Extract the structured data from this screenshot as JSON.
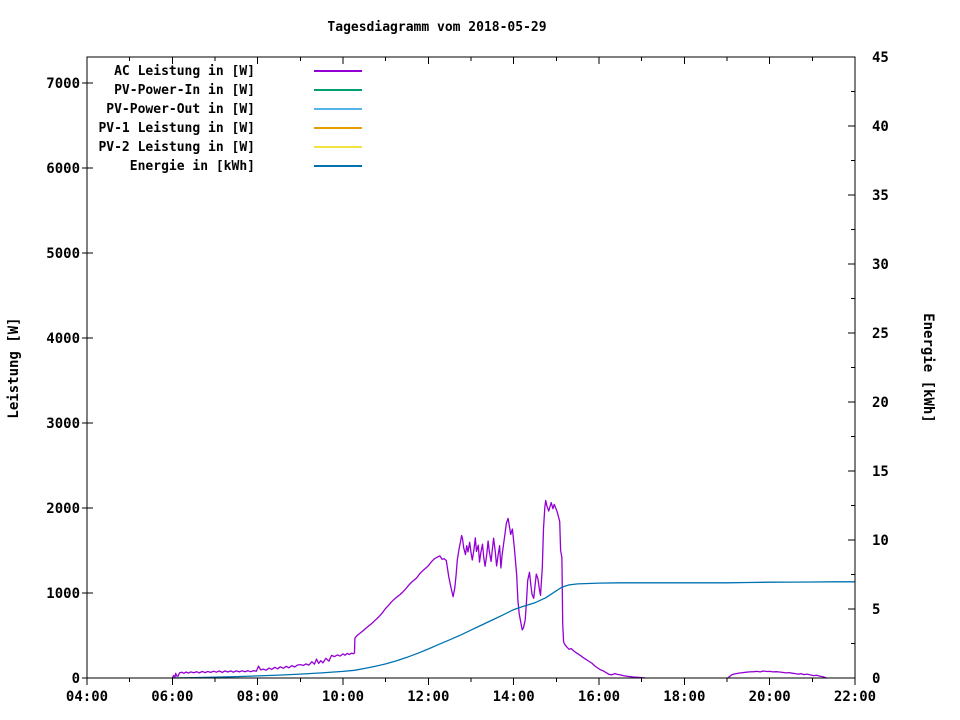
{
  "chart_data": {
    "type": "line",
    "title": "Tagesdiagramm vom 2018-05-29",
    "xlabel": "",
    "ylabel": "Leistung [W]",
    "y2label": "Energie [kWh]",
    "x_unit": "hours",
    "x_range": [
      4,
      22
    ],
    "y_range": [
      0,
      7000
    ],
    "y2_range": [
      0,
      45
    ],
    "grid": false,
    "legend_position": "top-left-inside",
    "x_tick_labels": [
      "04:00",
      "06:00",
      "08:00",
      "10:00",
      "12:00",
      "14:00",
      "16:00",
      "18:00",
      "20:00",
      "22:00"
    ],
    "y_tick_labels": [
      "0",
      "1000",
      "2000",
      "3000",
      "4000",
      "5000",
      "6000",
      "7000"
    ],
    "y2_tick_labels": [
      "0",
      "5",
      "10",
      "15",
      "20",
      "25",
      "30",
      "35",
      "40",
      "45"
    ],
    "series": [
      {
        "name": "AC Leistung in [W]",
        "color": "#9400d3",
        "axis": "y1",
        "points": [
          [
            6.0,
            0
          ],
          [
            6.03,
            30
          ],
          [
            6.06,
            10
          ],
          [
            6.08,
            55
          ],
          [
            6.1,
            25
          ],
          [
            6.13,
            20
          ],
          [
            6.17,
            60
          ],
          [
            6.22,
            68
          ],
          [
            6.27,
            55
          ],
          [
            6.32,
            70
          ],
          [
            6.38,
            58
          ],
          [
            6.43,
            72
          ],
          [
            6.5,
            62
          ],
          [
            6.57,
            74
          ],
          [
            6.63,
            60
          ],
          [
            6.7,
            76
          ],
          [
            6.77,
            64
          ],
          [
            6.83,
            76
          ],
          [
            6.9,
            66
          ],
          [
            6.97,
            80
          ],
          [
            7.03,
            68
          ],
          [
            7.1,
            82
          ],
          [
            7.17,
            66
          ],
          [
            7.23,
            84
          ],
          [
            7.3,
            70
          ],
          [
            7.37,
            84
          ],
          [
            7.43,
            68
          ],
          [
            7.5,
            84
          ],
          [
            7.57,
            72
          ],
          [
            7.63,
            85
          ],
          [
            7.7,
            74
          ],
          [
            7.77,
            86
          ],
          [
            7.83,
            74
          ],
          [
            7.9,
            86
          ],
          [
            7.97,
            80
          ],
          [
            8.02,
            140
          ],
          [
            8.07,
            95
          ],
          [
            8.13,
            105
          ],
          [
            8.2,
            92
          ],
          [
            8.27,
            118
          ],
          [
            8.33,
            100
          ],
          [
            8.4,
            126
          ],
          [
            8.47,
            108
          ],
          [
            8.53,
            132
          ],
          [
            8.6,
            114
          ],
          [
            8.67,
            138
          ],
          [
            8.73,
            120
          ],
          [
            8.8,
            146
          ],
          [
            8.87,
            130
          ],
          [
            8.93,
            152
          ],
          [
            9.0,
            158
          ],
          [
            9.07,
            148
          ],
          [
            9.13,
            166
          ],
          [
            9.2,
            152
          ],
          [
            9.27,
            192
          ],
          [
            9.33,
            162
          ],
          [
            9.38,
            222
          ],
          [
            9.43,
            172
          ],
          [
            9.48,
            204
          ],
          [
            9.53,
            178
          ],
          [
            9.6,
            232
          ],
          [
            9.67,
            198
          ],
          [
            9.73,
            266
          ],
          [
            9.8,
            252
          ],
          [
            9.87,
            272
          ],
          [
            9.93,
            258
          ],
          [
            10.0,
            284
          ],
          [
            10.05,
            268
          ],
          [
            10.1,
            290
          ],
          [
            10.15,
            276
          ],
          [
            10.2,
            292
          ],
          [
            10.25,
            286
          ],
          [
            10.27,
            298
          ],
          [
            10.28,
            468
          ],
          [
            10.33,
            500
          ],
          [
            10.4,
            528
          ],
          [
            10.47,
            556
          ],
          [
            10.53,
            582
          ],
          [
            10.6,
            612
          ],
          [
            10.67,
            640
          ],
          [
            10.73,
            668
          ],
          [
            10.8,
            700
          ],
          [
            10.87,
            736
          ],
          [
            10.93,
            772
          ],
          [
            11.0,
            820
          ],
          [
            11.07,
            856
          ],
          [
            11.13,
            892
          ],
          [
            11.2,
            926
          ],
          [
            11.27,
            956
          ],
          [
            11.33,
            978
          ],
          [
            11.4,
            1010
          ],
          [
            11.47,
            1048
          ],
          [
            11.53,
            1086
          ],
          [
            11.6,
            1124
          ],
          [
            11.67,
            1154
          ],
          [
            11.73,
            1180
          ],
          [
            11.8,
            1228
          ],
          [
            11.87,
            1262
          ],
          [
            11.93,
            1288
          ],
          [
            12.0,
            1320
          ],
          [
            12.07,
            1366
          ],
          [
            12.13,
            1398
          ],
          [
            12.2,
            1420
          ],
          [
            12.27,
            1436
          ],
          [
            12.32,
            1396
          ],
          [
            12.37,
            1404
          ],
          [
            12.42,
            1382
          ],
          [
            12.45,
            1288
          ],
          [
            12.48,
            1188
          ],
          [
            12.52,
            1092
          ],
          [
            12.55,
            1022
          ],
          [
            12.58,
            956
          ],
          [
            12.62,
            1060
          ],
          [
            12.65,
            1210
          ],
          [
            12.68,
            1388
          ],
          [
            12.72,
            1520
          ],
          [
            12.75,
            1592
          ],
          [
            12.78,
            1676
          ],
          [
            12.8,
            1640
          ],
          [
            12.83,
            1532
          ],
          [
            12.87,
            1452
          ],
          [
            12.9,
            1558
          ],
          [
            12.93,
            1484
          ],
          [
            12.97,
            1596
          ],
          [
            13.0,
            1478
          ],
          [
            13.03,
            1388
          ],
          [
            13.07,
            1514
          ],
          [
            13.1,
            1648
          ],
          [
            13.13,
            1488
          ],
          [
            13.17,
            1562
          ],
          [
            13.2,
            1364
          ],
          [
            13.23,
            1472
          ],
          [
            13.27,
            1574
          ],
          [
            13.3,
            1412
          ],
          [
            13.33,
            1314
          ],
          [
            13.37,
            1458
          ],
          [
            13.4,
            1612
          ],
          [
            13.43,
            1490
          ],
          [
            13.47,
            1370
          ],
          [
            13.5,
            1508
          ],
          [
            13.53,
            1646
          ],
          [
            13.57,
            1482
          ],
          [
            13.6,
            1318
          ],
          [
            13.63,
            1428
          ],
          [
            13.67,
            1556
          ],
          [
            13.7,
            1294
          ],
          [
            13.73,
            1446
          ],
          [
            13.77,
            1604
          ],
          [
            13.8,
            1706
          ],
          [
            13.83,
            1822
          ],
          [
            13.87,
            1878
          ],
          [
            13.9,
            1784
          ],
          [
            13.93,
            1688
          ],
          [
            13.97,
            1752
          ],
          [
            14.0,
            1608
          ],
          [
            14.03,
            1458
          ],
          [
            14.07,
            1208
          ],
          [
            14.1,
            912
          ],
          [
            14.13,
            756
          ],
          [
            14.17,
            648
          ],
          [
            14.2,
            566
          ],
          [
            14.23,
            592
          ],
          [
            14.27,
            684
          ],
          [
            14.3,
            902
          ],
          [
            14.33,
            1148
          ],
          [
            14.37,
            1244
          ],
          [
            14.4,
            1108
          ],
          [
            14.43,
            986
          ],
          [
            14.47,
            938
          ],
          [
            14.5,
            1082
          ],
          [
            14.53,
            1222
          ],
          [
            14.57,
            1164
          ],
          [
            14.6,
            1052
          ],
          [
            14.63,
            972
          ],
          [
            14.67,
            1298
          ],
          [
            14.7,
            1756
          ],
          [
            14.73,
            2004
          ],
          [
            14.75,
            2088
          ],
          [
            14.78,
            2026
          ],
          [
            14.82,
            1964
          ],
          [
            14.85,
            2012
          ],
          [
            14.88,
            2064
          ],
          [
            14.92,
            1992
          ],
          [
            14.95,
            2042
          ],
          [
            14.98,
            2006
          ],
          [
            15.02,
            1954
          ],
          [
            15.05,
            1896
          ],
          [
            15.08,
            1842
          ],
          [
            15.1,
            1504
          ],
          [
            15.13,
            1414
          ],
          [
            15.15,
            640
          ],
          [
            15.17,
            424
          ],
          [
            15.2,
            392
          ],
          [
            15.25,
            362
          ],
          [
            15.3,
            338
          ],
          [
            15.35,
            346
          ],
          [
            15.4,
            322
          ],
          [
            15.45,
            302
          ],
          [
            15.5,
            286
          ],
          [
            15.57,
            262
          ],
          [
            15.63,
            240
          ],
          [
            15.7,
            216
          ],
          [
            15.77,
            194
          ],
          [
            15.83,
            176
          ],
          [
            15.9,
            142
          ],
          [
            15.97,
            118
          ],
          [
            16.03,
            98
          ],
          [
            16.1,
            84
          ],
          [
            16.17,
            62
          ],
          [
            16.23,
            44
          ],
          [
            16.3,
            38
          ],
          [
            16.37,
            52
          ],
          [
            16.43,
            42
          ],
          [
            16.5,
            36
          ],
          [
            16.57,
            28
          ],
          [
            16.63,
            22
          ],
          [
            16.7,
            18
          ],
          [
            16.8,
            12
          ],
          [
            16.9,
            8
          ],
          [
            17.0,
            4
          ],
          [
            17.08,
            0
          ],
          null,
          [
            19.02,
            0
          ],
          [
            19.07,
            22
          ],
          [
            19.12,
            40
          ],
          [
            19.2,
            50
          ],
          [
            19.28,
            58
          ],
          [
            19.37,
            64
          ],
          [
            19.45,
            68
          ],
          [
            19.53,
            72
          ],
          [
            19.62,
            74
          ],
          [
            19.7,
            78
          ],
          [
            19.78,
            72
          ],
          [
            19.85,
            82
          ],
          [
            19.93,
            76
          ],
          [
            20.0,
            78
          ],
          [
            20.08,
            72
          ],
          [
            20.15,
            74
          ],
          [
            20.23,
            70
          ],
          [
            20.3,
            66
          ],
          [
            20.38,
            60
          ],
          [
            20.45,
            64
          ],
          [
            20.53,
            56
          ],
          [
            20.6,
            52
          ],
          [
            20.68,
            44
          ],
          [
            20.73,
            52
          ],
          [
            20.8,
            40
          ],
          [
            20.88,
            46
          ],
          [
            20.95,
            36
          ],
          [
            21.03,
            28
          ],
          [
            21.1,
            32
          ],
          [
            21.17,
            22
          ],
          [
            21.25,
            14
          ],
          [
            21.33,
            0
          ]
        ]
      },
      {
        "name": "PV-Power-In in [W]",
        "color": "#009e73",
        "axis": "y1",
        "points": []
      },
      {
        "name": "PV-Power-Out in [W]",
        "color": "#56b4e9",
        "axis": "y1",
        "points": []
      },
      {
        "name": "PV-1 Leistung in [W]",
        "color": "#e69f00",
        "axis": "y1",
        "points": []
      },
      {
        "name": "PV-2 Leistung in [W]",
        "color": "#f0e442",
        "axis": "y1",
        "points": []
      },
      {
        "name": "Energie in [kWh]",
        "color": "#0072b2",
        "axis": "y2",
        "points": [
          [
            6.0,
            0
          ],
          [
            6.5,
            0.02
          ],
          [
            7.0,
            0.06
          ],
          [
            7.5,
            0.1
          ],
          [
            8.0,
            0.15
          ],
          [
            8.5,
            0.21
          ],
          [
            9.0,
            0.28
          ],
          [
            9.5,
            0.37
          ],
          [
            10.0,
            0.48
          ],
          [
            10.27,
            0.56
          ],
          [
            10.5,
            0.69
          ],
          [
            10.75,
            0.84
          ],
          [
            11.0,
            1.02
          ],
          [
            11.25,
            1.24
          ],
          [
            11.5,
            1.5
          ],
          [
            11.75,
            1.79
          ],
          [
            12.0,
            2.1
          ],
          [
            12.25,
            2.44
          ],
          [
            12.5,
            2.77
          ],
          [
            12.75,
            3.1
          ],
          [
            13.0,
            3.47
          ],
          [
            13.25,
            3.84
          ],
          [
            13.5,
            4.2
          ],
          [
            13.75,
            4.57
          ],
          [
            14.0,
            4.96
          ],
          [
            14.25,
            5.22
          ],
          [
            14.5,
            5.46
          ],
          [
            14.75,
            5.81
          ],
          [
            15.0,
            6.32
          ],
          [
            15.1,
            6.52
          ],
          [
            15.17,
            6.62
          ],
          [
            15.3,
            6.75
          ],
          [
            15.5,
            6.82
          ],
          [
            16.0,
            6.88
          ],
          [
            16.5,
            6.9
          ],
          [
            17.0,
            6.9
          ],
          [
            18.0,
            6.9
          ],
          [
            19.0,
            6.9
          ],
          [
            19.5,
            6.92
          ],
          [
            20.0,
            6.94
          ],
          [
            20.5,
            6.95
          ],
          [
            21.0,
            6.96
          ],
          [
            21.5,
            6.97
          ],
          [
            22.0,
            6.97
          ]
        ]
      }
    ]
  }
}
